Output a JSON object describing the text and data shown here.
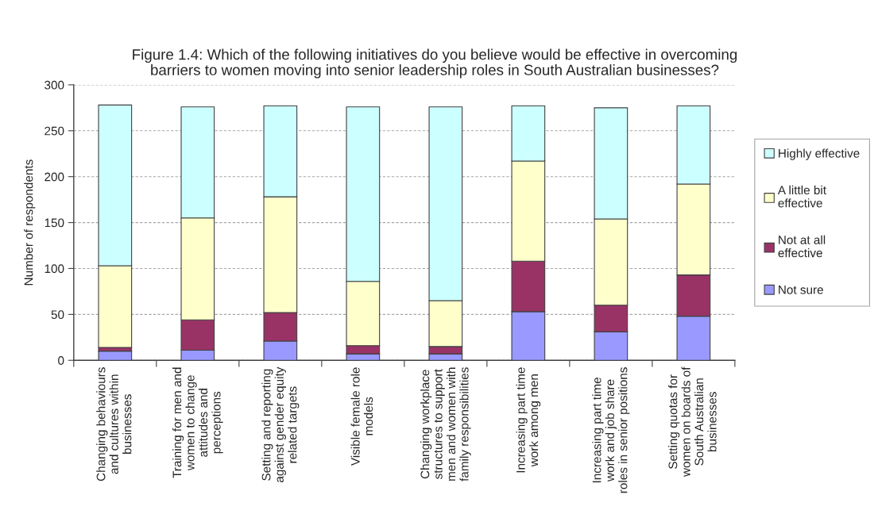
{
  "chart_data": {
    "type": "bar",
    "stacked": true,
    "title": "Figure 1.4: Which of the following initiatives do you believe would be effective in overcoming\nbarriers to women moving into senior leadership roles in South Australian businesses?",
    "ylabel": "Number of respondents",
    "categories": [
      "Changing behaviours\nand cultures within\nbusinesses",
      "Training for men and\nwomen to change\nattitudes and\nperceptions",
      "Setting and reporting\nagainst gender equity\nrelated targets",
      "Visible female role\nmodels",
      "Changing workplace\nstructures to support\nmen and women with\nfamily responsibilities",
      "Increasing part time\nwork among men",
      "Increasing part time\nwork and job share\nroles in senior positions",
      "Setting quotas for\nwomen on boards of\nSouth Australian\nbusinesses"
    ],
    "series": [
      {
        "name": "Not sure",
        "color": "#9999ff",
        "values": [
          10,
          11,
          21,
          7,
          7,
          53,
          31,
          48
        ]
      },
      {
        "name": "Not at all\neffective",
        "color": "#993366",
        "values": [
          4,
          33,
          31,
          9,
          8,
          55,
          29,
          45
        ]
      },
      {
        "name": "A little bit\neffective",
        "color": "#ffffcc",
        "values": [
          89,
          111,
          126,
          70,
          50,
          109,
          94,
          99
        ]
      },
      {
        "name": "Highly effective",
        "color": "#ccffff",
        "values": [
          175,
          121,
          99,
          190,
          211,
          60,
          121,
          85
        ]
      }
    ],
    "ylim": [
      0,
      300
    ],
    "yticks": [
      0,
      50,
      100,
      150,
      200,
      250,
      300
    ],
    "grid": "y",
    "legend": "right"
  }
}
